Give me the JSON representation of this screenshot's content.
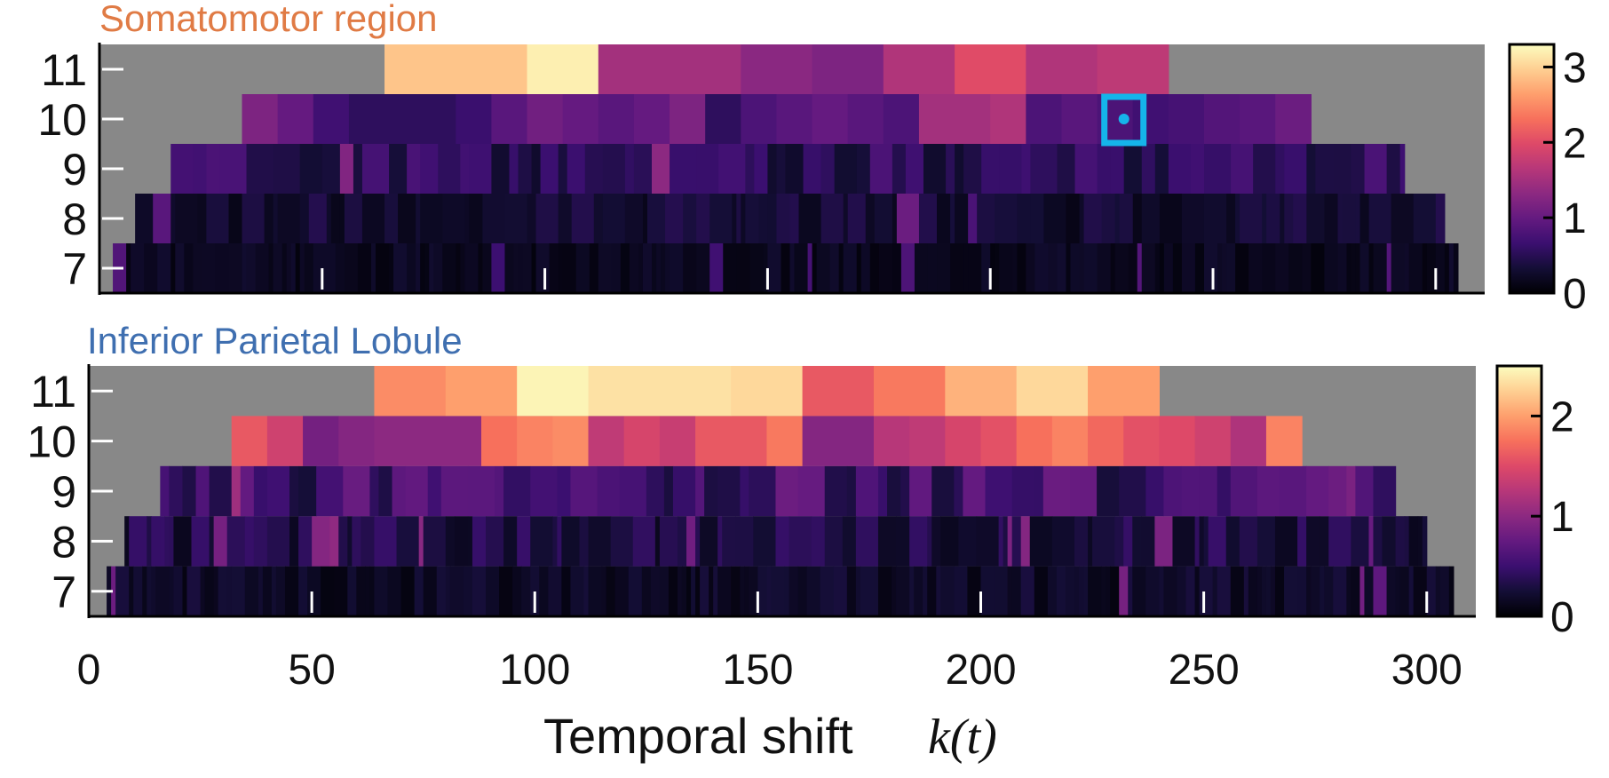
{
  "chart_data": [
    {
      "type": "heatmap",
      "title": "Somatomotor region",
      "title_color": "#e07b45",
      "rows": [
        7,
        8,
        9,
        10,
        11
      ],
      "row_ranges": {
        "7": [
          3,
          305
        ],
        "8": [
          8,
          302
        ],
        "9": [
          16,
          293
        ],
        "10": [
          32,
          272
        ],
        "11": [
          64,
          240
        ]
      },
      "background_color": "#888888",
      "xlim": [
        0,
        311
      ],
      "x_ticks": [
        0,
        50,
        100,
        150,
        200,
        250,
        300
      ],
      "show_x_tick_labels": false,
      "colorbar": {
        "min": 0,
        "max": 3.3,
        "ticks": [
          0,
          1,
          2,
          3
        ],
        "colormap": "magma"
      },
      "segments": {
        "11": [
          [
            64,
            96,
            2.9
          ],
          [
            96,
            112,
            3.2
          ],
          [
            112,
            128,
            1.5
          ],
          [
            128,
            144,
            1.5
          ],
          [
            144,
            160,
            1.3
          ],
          [
            160,
            176,
            1.2
          ],
          [
            176,
            192,
            1.6
          ],
          [
            192,
            208,
            2.0
          ],
          [
            208,
            224,
            1.6
          ],
          [
            224,
            240,
            1.7
          ]
        ],
        "10": [
          [
            32,
            40,
            1.2
          ],
          [
            40,
            48,
            1.0
          ],
          [
            48,
            56,
            0.7
          ],
          [
            56,
            80,
            0.55
          ],
          [
            80,
            88,
            0.65
          ],
          [
            88,
            96,
            0.9
          ],
          [
            96,
            104,
            1.1
          ],
          [
            104,
            112,
            1.0
          ],
          [
            112,
            120,
            0.9
          ],
          [
            120,
            128,
            1.0
          ],
          [
            128,
            136,
            1.2
          ],
          [
            136,
            144,
            0.55
          ],
          [
            144,
            152,
            0.8
          ],
          [
            152,
            160,
            0.9
          ],
          [
            160,
            168,
            1.0
          ],
          [
            168,
            176,
            0.9
          ],
          [
            176,
            184,
            0.8
          ],
          [
            184,
            200,
            1.5
          ],
          [
            200,
            208,
            1.6
          ],
          [
            208,
            216,
            0.8
          ],
          [
            216,
            224,
            0.9
          ],
          [
            224,
            232,
            0.8
          ],
          [
            232,
            240,
            0.7
          ],
          [
            240,
            248,
            0.75
          ],
          [
            248,
            256,
            0.85
          ],
          [
            256,
            264,
            0.9
          ],
          [
            264,
            272,
            1.05
          ]
        ]
      },
      "highlight": {
        "x": 230,
        "row": 10,
        "color": "#15b4ea"
      }
    },
    {
      "type": "heatmap",
      "title": "Inferior Parietal Lobule",
      "title_color": "#3f6fb0",
      "rows": [
        7,
        8,
        9,
        10,
        11
      ],
      "row_ranges": {
        "7": [
          4,
          306
        ],
        "8": [
          8,
          300
        ],
        "9": [
          16,
          293
        ],
        "10": [
          32,
          272
        ],
        "11": [
          64,
          240
        ]
      },
      "background_color": "#888888",
      "xlim": [
        0,
        311
      ],
      "x_ticks": [
        0,
        50,
        100,
        150,
        200,
        250,
        300
      ],
      "x_tick_labels": [
        "0",
        "50",
        "100",
        "150",
        "200",
        "250",
        "300"
      ],
      "xlabel": "Temporal shift",
      "xlabel_var": "k(t)",
      "colorbar": {
        "min": 0,
        "max": 2.5,
        "ticks": [
          0,
          1,
          2
        ],
        "colormap": "magma"
      },
      "segments": {
        "11": [
          [
            64,
            80,
            1.9
          ],
          [
            80,
            96,
            2.0
          ],
          [
            96,
            112,
            2.45
          ],
          [
            112,
            144,
            2.35
          ],
          [
            144,
            160,
            2.3
          ],
          [
            160,
            176,
            1.6
          ],
          [
            176,
            192,
            1.8
          ],
          [
            192,
            208,
            2.1
          ],
          [
            208,
            224,
            2.3
          ],
          [
            224,
            240,
            2.0
          ]
        ],
        "10": [
          [
            32,
            40,
            1.6
          ],
          [
            40,
            48,
            1.4
          ],
          [
            48,
            56,
            0.85
          ],
          [
            56,
            64,
            0.95
          ],
          [
            64,
            88,
            1.0
          ],
          [
            88,
            96,
            1.75
          ],
          [
            96,
            104,
            1.85
          ],
          [
            104,
            112,
            1.9
          ],
          [
            112,
            120,
            1.3
          ],
          [
            120,
            128,
            1.45
          ],
          [
            128,
            136,
            1.35
          ],
          [
            136,
            152,
            1.6
          ],
          [
            152,
            160,
            1.8
          ],
          [
            160,
            176,
            0.95
          ],
          [
            176,
            184,
            1.25
          ],
          [
            184,
            192,
            1.3
          ],
          [
            192,
            200,
            1.45
          ],
          [
            200,
            208,
            1.55
          ],
          [
            208,
            216,
            1.75
          ],
          [
            216,
            224,
            1.85
          ],
          [
            224,
            232,
            1.7
          ],
          [
            232,
            240,
            1.55
          ],
          [
            240,
            248,
            1.5
          ],
          [
            248,
            256,
            1.4
          ],
          [
            256,
            264,
            1.2
          ],
          [
            264,
            272,
            1.85
          ]
        ]
      }
    }
  ]
}
